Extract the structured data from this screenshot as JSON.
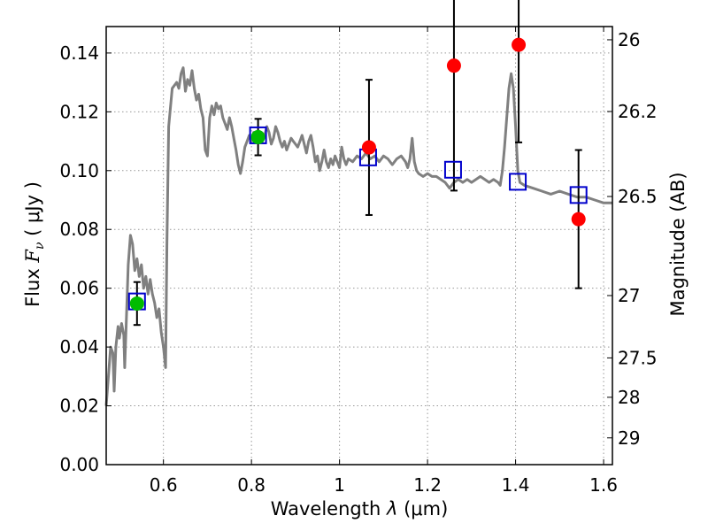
{
  "chart_data": {
    "type": "scatter",
    "xlabel": "Wavelength  λ (μm)",
    "ylabel": "Flux  F_ν  ( μJy )",
    "ylabel_parts": {
      "prefix": "Flux  ",
      "symbol": "F",
      "subscript": "ν",
      "suffix": "  ( μJy )"
    },
    "xlabel_parts": {
      "prefix": "Wavelength  ",
      "symbol": "λ",
      "suffix": " (μm)"
    },
    "right_ylabel": "Magnitude (AB)",
    "xlim": [
      0.47,
      1.62
    ],
    "ylim": [
      0.0,
      0.149
    ],
    "grid": true,
    "x_ticks": [
      {
        "value": 0.6,
        "label": "0.6"
      },
      {
        "value": 0.8,
        "label": "0.8"
      },
      {
        "value": 1.0,
        "label": "1"
      },
      {
        "value": 1.2,
        "label": "1.2"
      },
      {
        "value": 1.4,
        "label": "1.4"
      },
      {
        "value": 1.6,
        "label": "1.6"
      }
    ],
    "y_ticks": [
      {
        "value": 0.0,
        "label": "0.00"
      },
      {
        "value": 0.02,
        "label": "0.02"
      },
      {
        "value": 0.04,
        "label": "0.04"
      },
      {
        "value": 0.06,
        "label": "0.06"
      },
      {
        "value": 0.08,
        "label": "0.08"
      },
      {
        "value": 0.1,
        "label": "0.10"
      },
      {
        "value": 0.12,
        "label": "0.12"
      },
      {
        "value": 0.14,
        "label": "0.14"
      }
    ],
    "right_ticks": [
      {
        "flux": 0.1445,
        "label": "26"
      },
      {
        "flux": 0.1201,
        "label": "26.2"
      },
      {
        "flux": 0.0912,
        "label": "26.5"
      },
      {
        "flux": 0.0575,
        "label": "27"
      },
      {
        "flux": 0.0363,
        "label": "27.5"
      },
      {
        "flux": 0.0229,
        "label": "28"
      },
      {
        "flux": 0.0091,
        "label": "29"
      }
    ],
    "colors": {
      "model": "#808080",
      "photometry_optical": "#00bb00",
      "photometry_ir": "#ff0000",
      "model_squares": "#0000cc",
      "errorbars": "#000000",
      "grid": "#999999"
    },
    "series": [
      {
        "name": "model_spectrum",
        "kind": "line",
        "points": [
          [
            0.47,
            0.02
          ],
          [
            0.475,
            0.03
          ],
          [
            0.48,
            0.04
          ],
          [
            0.485,
            0.038
          ],
          [
            0.488,
            0.025
          ],
          [
            0.492,
            0.04
          ],
          [
            0.497,
            0.047
          ],
          [
            0.5,
            0.043
          ],
          [
            0.505,
            0.048
          ],
          [
            0.51,
            0.044
          ],
          [
            0.512,
            0.033
          ],
          [
            0.515,
            0.046
          ],
          [
            0.52,
            0.068
          ],
          [
            0.525,
            0.078
          ],
          [
            0.53,
            0.075
          ],
          [
            0.535,
            0.066
          ],
          [
            0.54,
            0.07
          ],
          [
            0.545,
            0.064
          ],
          [
            0.55,
            0.068
          ],
          [
            0.555,
            0.06
          ],
          [
            0.56,
            0.064
          ],
          [
            0.565,
            0.058
          ],
          [
            0.57,
            0.063
          ],
          [
            0.575,
            0.058
          ],
          [
            0.58,
            0.055
          ],
          [
            0.585,
            0.05
          ],
          [
            0.59,
            0.053
          ],
          [
            0.595,
            0.045
          ],
          [
            0.6,
            0.04
          ],
          [
            0.605,
            0.033
          ],
          [
            0.608,
            0.075
          ],
          [
            0.612,
            0.115
          ],
          [
            0.62,
            0.128
          ],
          [
            0.63,
            0.13
          ],
          [
            0.635,
            0.128
          ],
          [
            0.64,
            0.133
          ],
          [
            0.645,
            0.135
          ],
          [
            0.65,
            0.127
          ],
          [
            0.655,
            0.131
          ],
          [
            0.66,
            0.129
          ],
          [
            0.665,
            0.134
          ],
          [
            0.67,
            0.128
          ],
          [
            0.675,
            0.124
          ],
          [
            0.68,
            0.126
          ],
          [
            0.685,
            0.121
          ],
          [
            0.69,
            0.118
          ],
          [
            0.695,
            0.107
          ],
          [
            0.7,
            0.105
          ],
          [
            0.705,
            0.118
          ],
          [
            0.71,
            0.122
          ],
          [
            0.715,
            0.119
          ],
          [
            0.72,
            0.123
          ],
          [
            0.725,
            0.121
          ],
          [
            0.73,
            0.122
          ],
          [
            0.735,
            0.118
          ],
          [
            0.74,
            0.116
          ],
          [
            0.745,
            0.114
          ],
          [
            0.75,
            0.118
          ],
          [
            0.755,
            0.115
          ],
          [
            0.76,
            0.111
          ],
          [
            0.765,
            0.107
          ],
          [
            0.77,
            0.102
          ],
          [
            0.775,
            0.099
          ],
          [
            0.78,
            0.103
          ],
          [
            0.785,
            0.108
          ],
          [
            0.79,
            0.11
          ],
          [
            0.795,
            0.112
          ],
          [
            0.8,
            0.11
          ],
          [
            0.805,
            0.113
          ],
          [
            0.81,
            0.112
          ],
          [
            0.815,
            0.111
          ],
          [
            0.82,
            0.113
          ],
          [
            0.825,
            0.11
          ],
          [
            0.83,
            0.112
          ],
          [
            0.835,
            0.115
          ],
          [
            0.84,
            0.113
          ],
          [
            0.845,
            0.109
          ],
          [
            0.85,
            0.111
          ],
          [
            0.855,
            0.115
          ],
          [
            0.86,
            0.113
          ],
          [
            0.865,
            0.11
          ],
          [
            0.87,
            0.108
          ],
          [
            0.875,
            0.11
          ],
          [
            0.88,
            0.107
          ],
          [
            0.885,
            0.109
          ],
          [
            0.89,
            0.111
          ],
          [
            0.895,
            0.11
          ],
          [
            0.9,
            0.109
          ],
          [
            0.905,
            0.108
          ],
          [
            0.91,
            0.11
          ],
          [
            0.915,
            0.112
          ],
          [
            0.92,
            0.109
          ],
          [
            0.925,
            0.106
          ],
          [
            0.93,
            0.11
          ],
          [
            0.935,
            0.112
          ],
          [
            0.94,
            0.108
          ],
          [
            0.945,
            0.103
          ],
          [
            0.95,
            0.105
          ],
          [
            0.955,
            0.1
          ],
          [
            0.96,
            0.103
          ],
          [
            0.965,
            0.107
          ],
          [
            0.97,
            0.103
          ],
          [
            0.975,
            0.101
          ],
          [
            0.98,
            0.104
          ],
          [
            0.985,
            0.102
          ],
          [
            0.99,
            0.105
          ],
          [
            0.995,
            0.103
          ],
          [
            1.0,
            0.101
          ],
          [
            1.005,
            0.108
          ],
          [
            1.01,
            0.104
          ],
          [
            1.015,
            0.102
          ],
          [
            1.02,
            0.104
          ],
          [
            1.03,
            0.103
          ],
          [
            1.04,
            0.105
          ],
          [
            1.05,
            0.104
          ],
          [
            1.06,
            0.106
          ],
          [
            1.07,
            0.104
          ],
          [
            1.08,
            0.105
          ],
          [
            1.09,
            0.103
          ],
          [
            1.1,
            0.105
          ],
          [
            1.11,
            0.104
          ],
          [
            1.12,
            0.102
          ],
          [
            1.13,
            0.104
          ],
          [
            1.14,
            0.105
          ],
          [
            1.15,
            0.103
          ],
          [
            1.155,
            0.101
          ],
          [
            1.16,
            0.104
          ],
          [
            1.165,
            0.111
          ],
          [
            1.17,
            0.103
          ],
          [
            1.175,
            0.1
          ],
          [
            1.18,
            0.099
          ],
          [
            1.19,
            0.098
          ],
          [
            1.2,
            0.099
          ],
          [
            1.21,
            0.098
          ],
          [
            1.22,
            0.098
          ],
          [
            1.23,
            0.097
          ],
          [
            1.24,
            0.096
          ],
          [
            1.25,
            0.094
          ],
          [
            1.26,
            0.096
          ],
          [
            1.27,
            0.097
          ],
          [
            1.28,
            0.096
          ],
          [
            1.29,
            0.097
          ],
          [
            1.3,
            0.096
          ],
          [
            1.31,
            0.097
          ],
          [
            1.32,
            0.098
          ],
          [
            1.33,
            0.097
          ],
          [
            1.34,
            0.096
          ],
          [
            1.35,
            0.097
          ],
          [
            1.36,
            0.096
          ],
          [
            1.365,
            0.095
          ],
          [
            1.37,
            0.1
          ],
          [
            1.375,
            0.108
          ],
          [
            1.38,
            0.118
          ],
          [
            1.385,
            0.128
          ],
          [
            1.39,
            0.133
          ],
          [
            1.395,
            0.128
          ],
          [
            1.4,
            0.115
          ],
          [
            1.405,
            0.1
          ],
          [
            1.41,
            0.096
          ],
          [
            1.42,
            0.095
          ],
          [
            1.44,
            0.094
          ],
          [
            1.46,
            0.093
          ],
          [
            1.48,
            0.092
          ],
          [
            1.5,
            0.093
          ],
          [
            1.52,
            0.092
          ],
          [
            1.54,
            0.091
          ],
          [
            1.56,
            0.091
          ],
          [
            1.58,
            0.09
          ],
          [
            1.6,
            0.089
          ],
          [
            1.62,
            0.089
          ]
        ]
      },
      {
        "name": "model_photometry",
        "kind": "squares",
        "points": [
          [
            0.54,
            0.0555
          ],
          [
            0.815,
            0.112
          ],
          [
            1.065,
            0.1045
          ],
          [
            1.258,
            0.1003
          ],
          [
            1.405,
            0.0962
          ],
          [
            1.543,
            0.0917
          ]
        ]
      },
      {
        "name": "optical_detections",
        "kind": "points",
        "points": [
          {
            "x": 0.54,
            "y": 0.0548,
            "err": 0.0073
          },
          {
            "x": 0.815,
            "y": 0.1114,
            "err": 0.0062
          }
        ]
      },
      {
        "name": "nir_measurements",
        "kind": "points",
        "points": [
          {
            "x": 1.067,
            "y": 0.1079,
            "err": 0.023
          },
          {
            "x": 1.26,
            "y": 0.1357,
            "err": 0.0425
          },
          {
            "x": 1.407,
            "y": 0.1428,
            "err": 0.0332
          },
          {
            "x": 1.543,
            "y": 0.0835,
            "err": 0.0235
          }
        ]
      }
    ]
  }
}
